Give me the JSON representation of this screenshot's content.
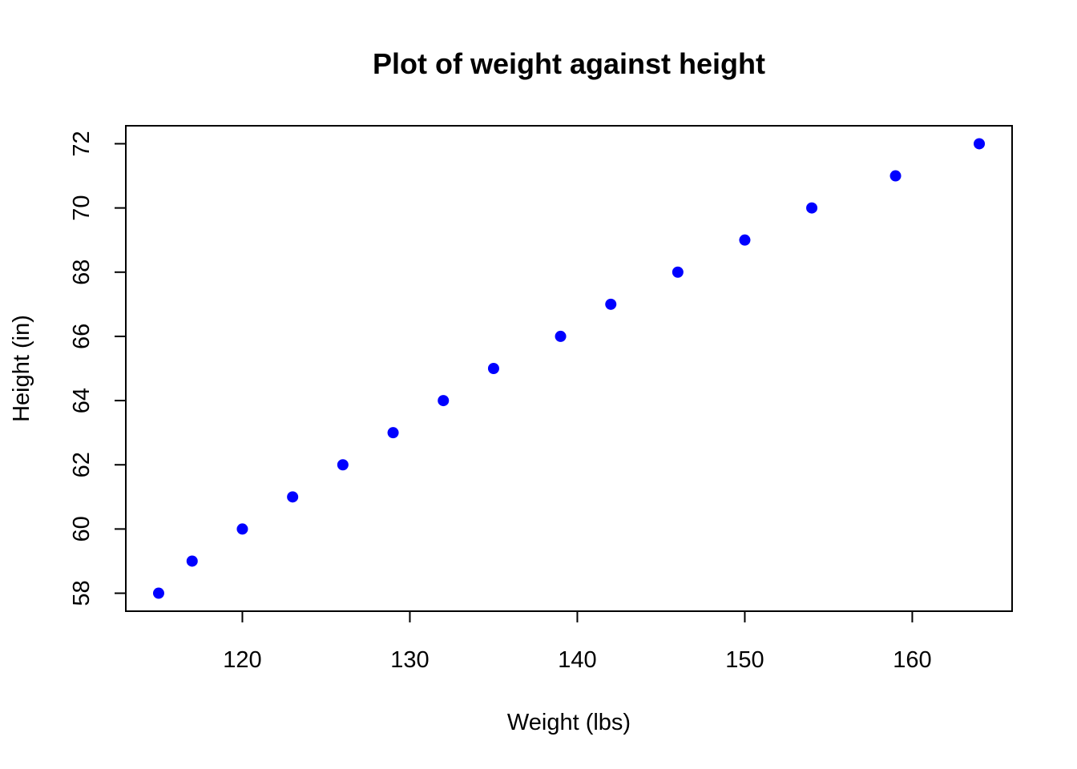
{
  "chart_data": {
    "type": "scatter",
    "title": "Plot of weight against height",
    "xlabel": "Weight (lbs)",
    "ylabel": "Height (in)",
    "xlim": [
      113.04,
      165.96
    ],
    "ylim": [
      57.44,
      72.56
    ],
    "x_ticks": [
      120,
      130,
      140,
      150,
      160
    ],
    "y_ticks": [
      58,
      60,
      62,
      64,
      66,
      68,
      70,
      72
    ],
    "grid": false,
    "point_color": "#0000ff",
    "points": [
      {
        "x": 115,
        "y": 58
      },
      {
        "x": 117,
        "y": 59
      },
      {
        "x": 120,
        "y": 60
      },
      {
        "x": 123,
        "y": 61
      },
      {
        "x": 126,
        "y": 62
      },
      {
        "x": 129,
        "y": 63
      },
      {
        "x": 132,
        "y": 64
      },
      {
        "x": 135,
        "y": 65
      },
      {
        "x": 139,
        "y": 66
      },
      {
        "x": 142,
        "y": 67
      },
      {
        "x": 146,
        "y": 68
      },
      {
        "x": 150,
        "y": 69
      },
      {
        "x": 154,
        "y": 70
      },
      {
        "x": 159,
        "y": 71
      },
      {
        "x": 164,
        "y": 72
      }
    ]
  }
}
